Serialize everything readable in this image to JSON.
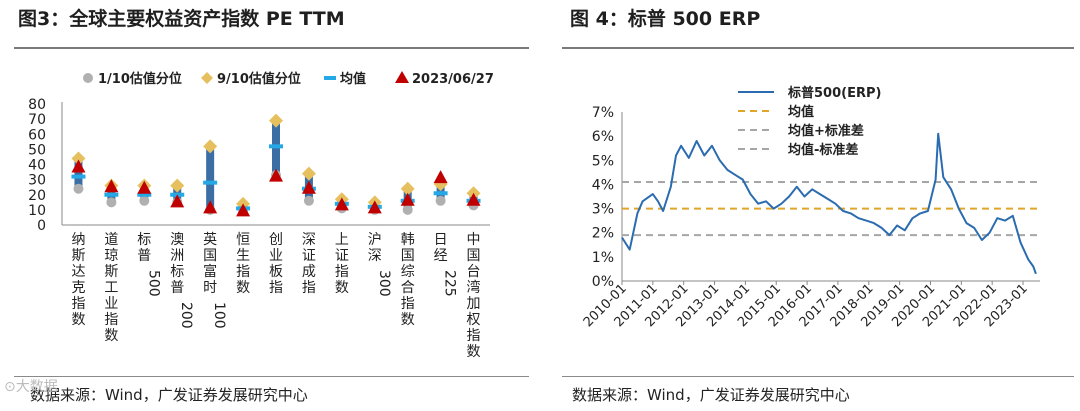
{
  "left": {
    "title": "图3：全球主要权益资产指数  PE TTM",
    "source": "数据来源：Wind，广发证券发展研究中心",
    "legend": [
      "1/10估值分位",
      "9/10估值分位",
      "均值",
      "2023/06/27"
    ]
  },
  "right": {
    "title": "图 4：标普 500 ERP",
    "source": "数据来源：Wind，广发证券发展研究中心",
    "legend": [
      "标普500(ERP)",
      "均值",
      "均值+标准差",
      "均值-标准差"
    ]
  },
  "watermark": "⊙大数据",
  "colors": {
    "bar": "#3a6ea5",
    "p10": "#b0b0b0",
    "p90": "#e6c05e",
    "mean": "#25a9e6",
    "current": "#c00000",
    "erp_line": "#2b6cb0",
    "erp_mean": "#e0a52b",
    "erp_std": "#a6a6a6"
  },
  "chart_data": [
    {
      "type": "scatter",
      "title": "全球主要权益资产指数  PE TTM",
      "categories": [
        "纳斯达克指数",
        "道琼斯工业指数",
        "标普500",
        "澳洲标普200",
        "英国富时100",
        "恒生指数",
        "创业板指",
        "深证成指",
        "上证指数",
        "沪深300",
        "韩国综合指数",
        "日经225",
        "中国台湾加权指数"
      ],
      "ylim": [
        0,
        80
      ],
      "yticks": [
        0,
        10,
        20,
        30,
        40,
        50,
        60,
        70,
        80
      ],
      "series": [
        {
          "name": "1/10估值分位",
          "values": [
            24,
            15,
            16,
            15,
            10,
            9,
            33,
            16,
            11,
            10,
            10,
            16,
            13
          ]
        },
        {
          "name": "9/10估值分位",
          "values": [
            44,
            26,
            26,
            26,
            52,
            14,
            69,
            34,
            17,
            15,
            24,
            27,
            21
          ]
        },
        {
          "name": "均值",
          "values": [
            32,
            20,
            20,
            20,
            28,
            11,
            52,
            24,
            14,
            12,
            16,
            21,
            16
          ]
        },
        {
          "name": "2023/06/27",
          "values": [
            38,
            25,
            24,
            15,
            11,
            9,
            32,
            24,
            13,
            11,
            16,
            31,
            16
          ]
        }
      ],
      "legend_position": "top"
    },
    {
      "type": "line",
      "title": "标普 500 ERP",
      "x_ticks": [
        "2010-01",
        "2011-01",
        "2012-01",
        "2013-01",
        "2014-01",
        "2015-01",
        "2016-01",
        "2017-01",
        "2018-01",
        "2019-01",
        "2020-01",
        "2021-01",
        "2022-01",
        "2023-01"
      ],
      "y_ticks": [
        "0%",
        "1%",
        "2%",
        "3%",
        "4%",
        "5%",
        "6%",
        "7%"
      ],
      "ylim": [
        0,
        7
      ],
      "series": [
        {
          "name": "标普500(ERP)",
          "points": [
            [
              "2010-01",
              1.8
            ],
            [
              "2010-04",
              1.3
            ],
            [
              "2010-07",
              2.8
            ],
            [
              "2010-09",
              3.3
            ],
            [
              "2011-01",
              3.6
            ],
            [
              "2011-03",
              3.3
            ],
            [
              "2011-05",
              2.9
            ],
            [
              "2011-08",
              3.9
            ],
            [
              "2011-10",
              5.2
            ],
            [
              "2011-12",
              5.6
            ],
            [
              "2012-03",
              5.1
            ],
            [
              "2012-06",
              5.8
            ],
            [
              "2012-09",
              5.2
            ],
            [
              "2012-12",
              5.6
            ],
            [
              "2013-03",
              5.0
            ],
            [
              "2013-06",
              4.6
            ],
            [
              "2013-09",
              4.4
            ],
            [
              "2013-12",
              4.2
            ],
            [
              "2014-03",
              3.6
            ],
            [
              "2014-06",
              3.2
            ],
            [
              "2014-09",
              3.3
            ],
            [
              "2014-12",
              3.0
            ],
            [
              "2015-03",
              3.2
            ],
            [
              "2015-06",
              3.5
            ],
            [
              "2015-09",
              3.9
            ],
            [
              "2015-12",
              3.5
            ],
            [
              "2016-03",
              3.8
            ],
            [
              "2016-06",
              3.6
            ],
            [
              "2016-09",
              3.4
            ],
            [
              "2016-12",
              3.2
            ],
            [
              "2017-03",
              2.9
            ],
            [
              "2017-06",
              2.8
            ],
            [
              "2017-09",
              2.6
            ],
            [
              "2017-12",
              2.5
            ],
            [
              "2018-03",
              2.4
            ],
            [
              "2018-06",
              2.2
            ],
            [
              "2018-09",
              1.9
            ],
            [
              "2018-12",
              2.3
            ],
            [
              "2019-03",
              2.1
            ],
            [
              "2019-06",
              2.6
            ],
            [
              "2019-09",
              2.8
            ],
            [
              "2019-12",
              2.9
            ],
            [
              "2020-03",
              4.2
            ],
            [
              "2020-04",
              6.1
            ],
            [
              "2020-06",
              4.3
            ],
            [
              "2020-09",
              3.8
            ],
            [
              "2020-12",
              3.0
            ],
            [
              "2021-03",
              2.4
            ],
            [
              "2021-06",
              2.2
            ],
            [
              "2021-09",
              1.7
            ],
            [
              "2021-12",
              2.0
            ],
            [
              "2022-03",
              2.6
            ],
            [
              "2022-06",
              2.5
            ],
            [
              "2022-09",
              2.7
            ],
            [
              "2022-12",
              1.6
            ],
            [
              "2023-03",
              0.9
            ],
            [
              "2023-05",
              0.6
            ],
            [
              "2023-06",
              0.3
            ]
          ]
        },
        {
          "name": "均值",
          "constant": 3.0
        },
        {
          "name": "均值+标准差",
          "constant": 4.1
        },
        {
          "name": "均值-标准差",
          "constant": 1.9
        }
      ],
      "legend_position": "top-right"
    }
  ]
}
